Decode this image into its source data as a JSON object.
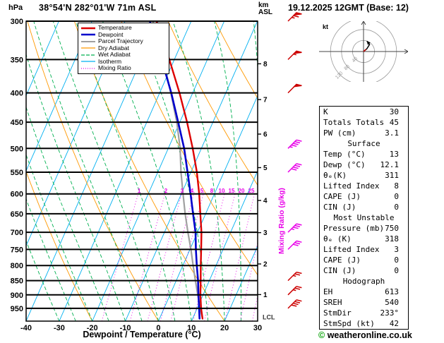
{
  "header": {
    "pressure_unit": "hPa",
    "title": "38°54'N 282°01'W 71m ASL",
    "altitude_unit_lines": [
      "km",
      "ASL"
    ],
    "datetime": "19.12.2025 12GMT (Base: 12)"
  },
  "axes": {
    "x_label": "Dewpoint / Temperature (°C)",
    "right_label": "Mixing Ratio (g/kg)",
    "lcl_label": "LCL"
  },
  "legend": [
    {
      "label": "Temperature",
      "color": "#dd0000",
      "dash": "",
      "lw": 2.4
    },
    {
      "label": "Dewpoint",
      "color": "#0000cc",
      "dash": "",
      "lw": 2.4
    },
    {
      "label": "Parcel Trajectory",
      "color": "#a0a0a0",
      "dash": "",
      "lw": 2.0
    },
    {
      "label": "Dry Adiabat",
      "color": "#ff9900",
      "dash": "",
      "lw": 1.2
    },
    {
      "label": "Wet Adiabat",
      "color": "#00b050",
      "dash": "5,2",
      "lw": 1.2
    },
    {
      "label": "Isotherm",
      "color": "#00b0f0",
      "dash": "",
      "lw": 1.2
    },
    {
      "label": "Mixing Ratio",
      "color": "#e800e8",
      "dash": "1,2",
      "lw": 1.2
    }
  ],
  "chart_data": {
    "type": "skewt_log_p_sounding",
    "pressure_axis": {
      "levels": [
        300,
        350,
        400,
        450,
        500,
        550,
        600,
        650,
        700,
        750,
        800,
        850,
        900,
        950
      ],
      "min": 300,
      "max": 1000,
      "unit": "hPa",
      "log": true
    },
    "temp_axis": {
      "ticks": [
        -40,
        -30,
        -20,
        -10,
        0,
        10,
        20,
        30
      ],
      "min": -40,
      "max": 30,
      "unit": "°C"
    },
    "km_ticks": [
      {
        "km": 1,
        "pressure": 899
      },
      {
        "km": 2,
        "pressure": 795
      },
      {
        "km": 3,
        "pressure": 701
      },
      {
        "km": 4,
        "pressure": 616
      },
      {
        "km": 5,
        "pressure": 540
      },
      {
        "km": 6,
        "pressure": 472
      },
      {
        "km": 7,
        "pressure": 411
      },
      {
        "km": 8,
        "pressure": 356
      }
    ],
    "isotherm_step_c": 10,
    "dry_adiabats_theta_c": [
      -40,
      -20,
      0,
      20,
      40,
      60,
      80,
      100,
      120,
      140,
      160,
      180
    ],
    "wet_adiabats_start_c": [
      -30,
      -25,
      -20,
      -15,
      -10,
      -5,
      0,
      5,
      10,
      15,
      20,
      25,
      30,
      35
    ],
    "mixing_ratio_g_kg": [
      1,
      2,
      3,
      4,
      5,
      8,
      10,
      15,
      20,
      25
    ],
    "temperature_profile_p_t": [
      [
        990,
        13
      ],
      [
        950,
        11.2
      ],
      [
        900,
        9.2
      ],
      [
        850,
        7.4
      ],
      [
        800,
        5.4
      ],
      [
        750,
        3.4
      ],
      [
        700,
        1.2
      ],
      [
        650,
        -1.6
      ],
      [
        600,
        -4.6
      ],
      [
        550,
        -8.2
      ],
      [
        500,
        -12.6
      ],
      [
        450,
        -17.8
      ],
      [
        400,
        -24
      ],
      [
        350,
        -31.5
      ],
      [
        300,
        -40.5
      ]
    ],
    "dewpoint_profile_p_t": [
      [
        990,
        12.1
      ],
      [
        950,
        10.6
      ],
      [
        900,
        8.6
      ],
      [
        850,
        6.6
      ],
      [
        800,
        4.2
      ],
      [
        750,
        1.8
      ],
      [
        700,
        -0.6
      ],
      [
        650,
        -3.8
      ],
      [
        600,
        -7.2
      ],
      [
        550,
        -11
      ],
      [
        500,
        -15.2
      ],
      [
        450,
        -20.5
      ],
      [
        400,
        -26.5
      ],
      [
        350,
        -33.8
      ],
      [
        300,
        -42.5
      ]
    ],
    "parcel_profile_p_t": [
      [
        990,
        13
      ],
      [
        950,
        10.9
      ],
      [
        900,
        8.4
      ],
      [
        850,
        5.8
      ],
      [
        800,
        3.1
      ],
      [
        750,
        0.3
      ],
      [
        700,
        -2.9
      ],
      [
        650,
        -6.2
      ],
      [
        600,
        -9.5
      ],
      [
        550,
        -13
      ],
      [
        500,
        -16.4
      ],
      [
        450,
        -20.9
      ],
      [
        400,
        -26.6
      ],
      [
        350,
        -33.4
      ],
      [
        300,
        -41.6
      ]
    ],
    "lcl_pressure": 985,
    "wind_barbs": [
      {
        "pressure": 300,
        "speed_kt": 65,
        "dir_deg": 235,
        "color": "#cc0000"
      },
      {
        "pressure": 350,
        "speed_kt": 55,
        "dir_deg": 235,
        "color": "#cc0000"
      },
      {
        "pressure": 400,
        "speed_kt": 50,
        "dir_deg": 235,
        "color": "#cc0000"
      },
      {
        "pressure": 500,
        "speed_kt": 45,
        "dir_deg": 235,
        "color": "#e800e8"
      },
      {
        "pressure": 550,
        "speed_kt": 40,
        "dir_deg": 235,
        "color": "#e800e8"
      },
      {
        "pressure": 700,
        "speed_kt": 35,
        "dir_deg": 230,
        "color": "#e800e8"
      },
      {
        "pressure": 750,
        "speed_kt": 30,
        "dir_deg": 230,
        "color": "#e800e8"
      },
      {
        "pressure": 850,
        "speed_kt": 25,
        "dir_deg": 230,
        "color": "#cc0000"
      },
      {
        "pressure": 900,
        "speed_kt": 25,
        "dir_deg": 230,
        "color": "#cc0000"
      },
      {
        "pressure": 950,
        "speed_kt": 40,
        "dir_deg": 230,
        "color": "#cc0000"
      }
    ],
    "colors": {
      "temperature": "#dd0000",
      "dewpoint": "#0000cc",
      "parcel": "#a0a0a0",
      "dry_adiabat": "#ff9900",
      "wet_adiabat": "#00b050",
      "isotherm": "#00b0f0",
      "mixing_ratio": "#e800e8",
      "pressure_line": "#000000"
    }
  },
  "hodograph": {
    "unit_label": "kt",
    "rings_kt": [
      40,
      80,
      120
    ],
    "trace_u_v": [
      [
        0,
        0
      ],
      [
        12,
        10
      ],
      [
        22,
        26
      ],
      [
        12,
        38
      ]
    ],
    "storm_u_v": [
      [
        0,
        0
      ],
      [
        9,
        8
      ]
    ]
  },
  "stats": {
    "sections": [
      {
        "header": null,
        "rows": [
          [
            "K",
            "30"
          ],
          [
            "Totals Totals",
            "45"
          ],
          [
            "PW (cm)",
            "3.1"
          ]
        ]
      },
      {
        "header": "Surface",
        "rows": [
          [
            "Temp (°C)",
            "13"
          ],
          [
            "Dewp (°C)",
            "12.1"
          ],
          [
            "θₑ(K)",
            "311"
          ],
          [
            "Lifted Index",
            "8"
          ],
          [
            "CAPE (J)",
            "0"
          ],
          [
            "CIN (J)",
            "0"
          ]
        ]
      },
      {
        "header": "Most Unstable",
        "rows": [
          [
            "Pressure (mb)",
            "750"
          ],
          [
            "θₑ (K)",
            "318"
          ],
          [
            "Lifted Index",
            "3"
          ],
          [
            "CAPE (J)",
            "0"
          ],
          [
            "CIN (J)",
            "0"
          ]
        ]
      },
      {
        "header": "Hodograph",
        "rows": [
          [
            "EH",
            "613"
          ],
          [
            "SREH",
            "540"
          ],
          [
            "StmDir",
            "233°"
          ],
          [
            "StmSpd (kt)",
            "42"
          ]
        ]
      }
    ]
  },
  "footer": {
    "copyright_symbol": "©",
    "copyright_text": "weatheronline.co.uk"
  }
}
